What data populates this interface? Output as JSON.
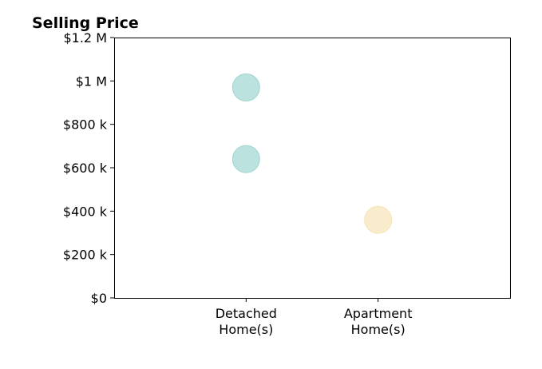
{
  "chart_data": {
    "type": "scatter",
    "title": "Selling Price",
    "xlabel": "",
    "ylabel": "",
    "categories": [
      [
        "Detached",
        "Home(s)"
      ],
      [
        "Apartment",
        "Home(s)"
      ]
    ],
    "x_range": [
      -1,
      2
    ],
    "ylim": [
      0,
      1200000
    ],
    "y_ticks": [
      {
        "value": 0,
        "label": "$0"
      },
      {
        "value": 200000,
        "label": "$200 k"
      },
      {
        "value": 400000,
        "label": "$400 k"
      },
      {
        "value": 600000,
        "label": "$600 k"
      },
      {
        "value": 800000,
        "label": "$800 k"
      },
      {
        "value": 1000000,
        "label": "$1 M"
      },
      {
        "value": 1200000,
        "label": "$1.2 M"
      }
    ],
    "points": [
      {
        "category": 0,
        "value": 970000,
        "color": "#9fd5d1"
      },
      {
        "category": 0,
        "value": 640000,
        "color": "#9fd5d1"
      },
      {
        "category": 1,
        "value": 360000,
        "color": "#f6e4b6"
      }
    ],
    "grid": false,
    "legend": "none"
  }
}
